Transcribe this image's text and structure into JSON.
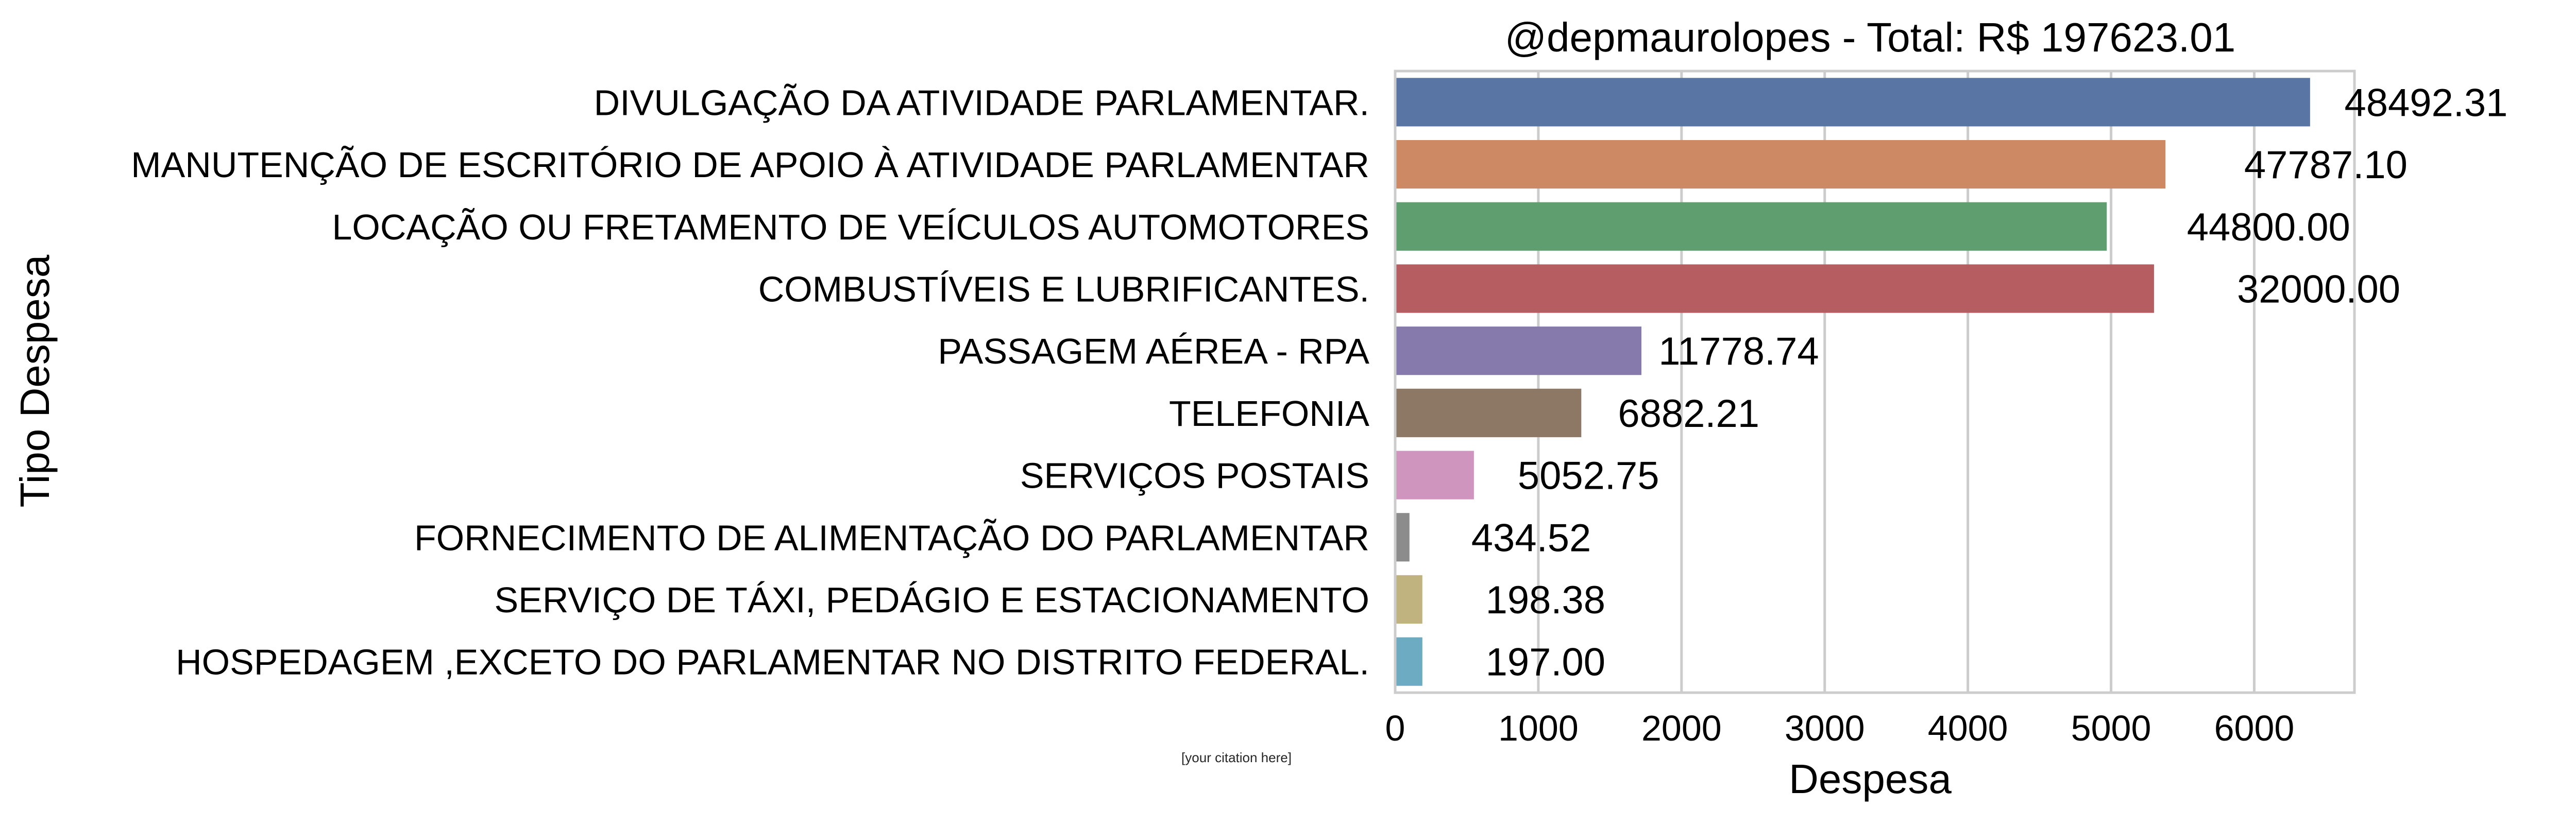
{
  "chart_data": {
    "type": "bar",
    "orientation": "horizontal",
    "title": "@depmaurolopes - Total: R$ 197623.01",
    "xlabel": "Despesa",
    "ylabel": "Tipo Despesa",
    "xlim": [
      0,
      6700
    ],
    "xticks": [
      0,
      1000,
      2000,
      3000,
      4000,
      5000,
      6000
    ],
    "grid": true,
    "categories": [
      "DIVULGAÇÃO DA ATIVIDADE PARLAMENTAR.",
      "MANUTENÇÃO DE ESCRITÓRIO DE APOIO À ATIVIDADE PARLAMENTAR",
      "LOCAÇÃO OU FRETAMENTO DE VEÍCULOS AUTOMOTORES",
      "COMBUSTÍVEIS E LUBRIFICANTES.",
      "PASSAGEM AÉREA - RPA",
      "TELEFONIA",
      "SERVIÇOS POSTAIS",
      "FORNECIMENTO DE ALIMENTAÇÃO DO PARLAMENTAR",
      "SERVIÇO DE TÁXI, PEDÁGIO E ESTACIONAMENTO",
      "HOSPEDAGEM ,EXCETO DO PARLAMENTAR NO DISTRITO FEDERAL."
    ],
    "values": [
      6390,
      5380,
      4970,
      5300,
      1720,
      1300,
      550,
      100,
      190,
      190
    ],
    "value_labels": [
      "48492.31",
      "47787.10",
      "44800.00",
      "32000.00",
      "11778.74",
      "6882.21",
      "5052.75",
      "434.52",
      "198.38",
      "197.00"
    ],
    "label_positions": [
      7200,
      6500,
      6100,
      6450,
      2400,
      2050,
      1350,
      950,
      1050,
      1050
    ],
    "colors": [
      "#5975a4",
      "#cc8963",
      "#5f9e6e",
      "#b55d60",
      "#857aab",
      "#8d7866",
      "#d095bf",
      "#8c8c8c",
      "#c1b37f",
      "#6cabc2"
    ]
  },
  "citation": "[your citation here]"
}
